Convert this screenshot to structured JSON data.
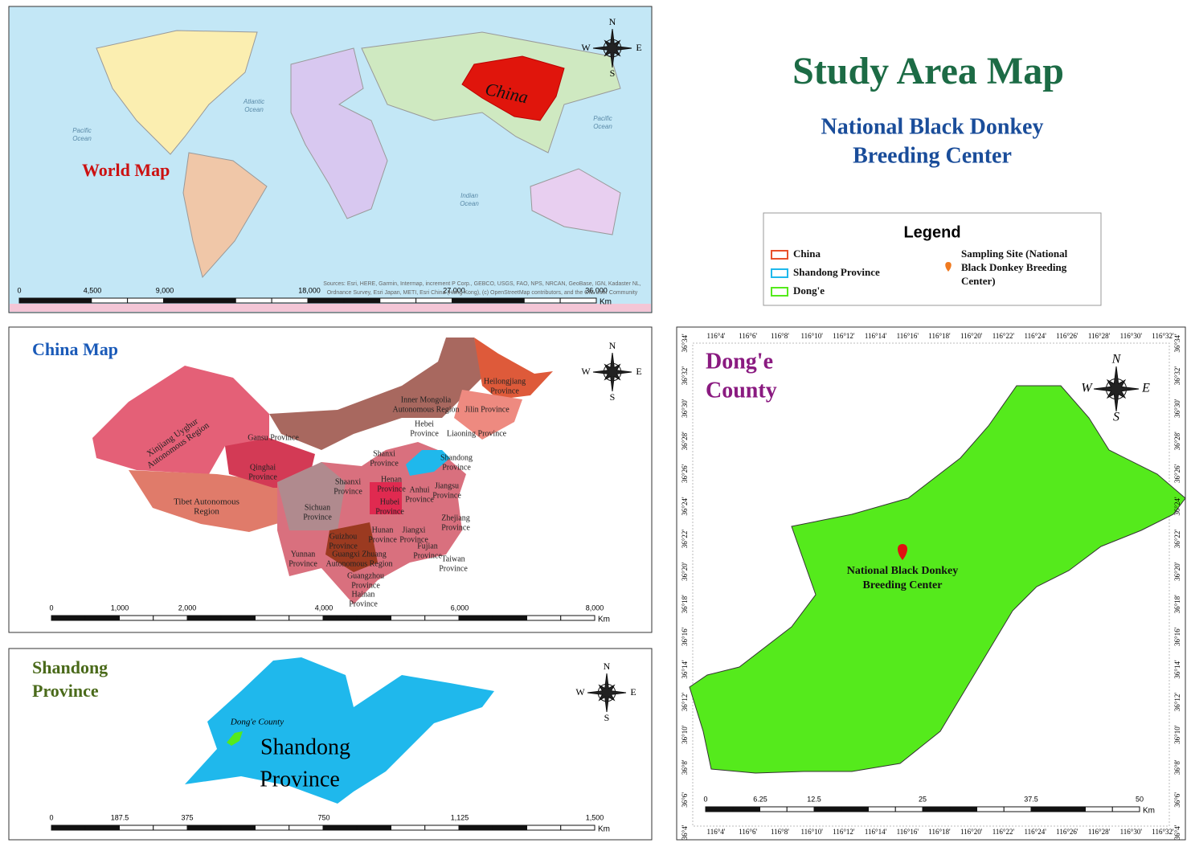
{
  "title": "Study Area Map",
  "subtitle": [
    "National Black Donkey",
    "Breeding Center"
  ],
  "legend": {
    "title": "Legend",
    "items": [
      {
        "label": "China",
        "color": "#e8502a"
      },
      {
        "label": "Shandong Province",
        "color": "#1fb8ec"
      },
      {
        "label": "Dong'e",
        "color": "#55ea1c"
      }
    ],
    "site": [
      "Sampling Site (National",
      "Black Donkey Breeding",
      "Center)"
    ]
  },
  "compass": [
    "N",
    "E",
    "S",
    "W"
  ],
  "world_map": {
    "label": "World Map",
    "country": "China",
    "oceans": [
      [
        "Atlantic",
        "Ocean"
      ],
      [
        "Pacific",
        "Ocean"
      ],
      [
        "Pacific",
        "Ocean"
      ],
      [
        "Indian",
        "Ocean"
      ]
    ],
    "scale": [
      "0",
      "4,500",
      "9,000",
      "18,000",
      "27,000",
      "36,000"
    ],
    "unit": "Km",
    "attribution": [
      "Sources: Esri, HERE, Garmin, Intermap, increment P Corp., GEBCO, USGS, FAO, NPS, NRCAN, GeoBase, IGN, Kadaster NL,",
      "Ordnance Survey, Esri Japan, METI, Esri China (Hong Kong), (c) OpenStreetMap contributors, and the GIS User Community"
    ]
  },
  "china_map": {
    "label": "China Map",
    "provinces": [
      [
        "Xinjiang Uyghur",
        "Autonomous Region"
      ],
      [
        "Tibet Autonomous",
        "Region"
      ],
      [
        "Qinghai",
        "Province"
      ],
      [
        "Gansu Province"
      ],
      [
        "Inner Mongolia",
        "Autonomous Region"
      ],
      [
        "Heilongjiang",
        "Province"
      ],
      [
        "Jilin Province"
      ],
      [
        "Liaoning Province"
      ],
      [
        "Hebei",
        "Province"
      ],
      [
        "Shanxi",
        "Province"
      ],
      [
        "Shandong",
        "Province"
      ],
      [
        "Henan",
        "Province"
      ],
      [
        "Shaanxi",
        "Province"
      ],
      [
        "Sichuan",
        "Province"
      ],
      [
        "Hubei",
        "Province"
      ],
      [
        "Anhui",
        "Province"
      ],
      [
        "Jiangsu",
        "Province"
      ],
      [
        "Zhejiang",
        "Province"
      ],
      [
        "Hunan",
        "Province"
      ],
      [
        "Jiangxi",
        "Province"
      ],
      [
        "Fujian",
        "Province"
      ],
      [
        "Guizhou",
        "Province"
      ],
      [
        "Yunnan",
        "Province"
      ],
      [
        "Guangxi Zhuang",
        "Autonomous Region"
      ],
      [
        "Guangzhou",
        "Province"
      ],
      [
        "Hainan",
        "Province"
      ],
      [
        "Taiwan",
        "Province"
      ]
    ],
    "scale": [
      "0",
      "1,000",
      "2,000",
      "4,000",
      "6,000",
      "8,000"
    ],
    "unit": "Km"
  },
  "shandong_map": {
    "label": [
      "Shandong",
      "Province"
    ],
    "county": "Dong'e County",
    "province": [
      "Shandong",
      "Province"
    ],
    "scale": [
      "0",
      "187.5",
      "375",
      "750",
      "1,125",
      "1,500"
    ],
    "unit": "Km"
  },
  "donge_map": {
    "label": [
      "Dong'e",
      "County"
    ],
    "site": [
      "National Black Donkey",
      "Breeding Center"
    ],
    "scale": [
      "0",
      "6.25",
      "12.5",
      "25",
      "37.5",
      "50"
    ],
    "unit": "Km",
    "lon_ticks": [
      "116°4'",
      "116°6'",
      "116°8'",
      "116°10'",
      "116°12'",
      "116°14'",
      "116°16'",
      "116°18'",
      "116°20'",
      "116°22'",
      "116°24'",
      "116°26'",
      "116°28'",
      "116°30'",
      "116°32'"
    ],
    "lat_ticks": [
      "36°34'",
      "36°32'",
      "36°30'",
      "36°28'",
      "36°26'",
      "36°24'",
      "36°22'",
      "36°20'",
      "36°18'",
      "36°16'",
      "36°14'",
      "36°12'",
      "36°10'",
      "36°8'",
      "36°6'",
      "36°4'"
    ]
  }
}
